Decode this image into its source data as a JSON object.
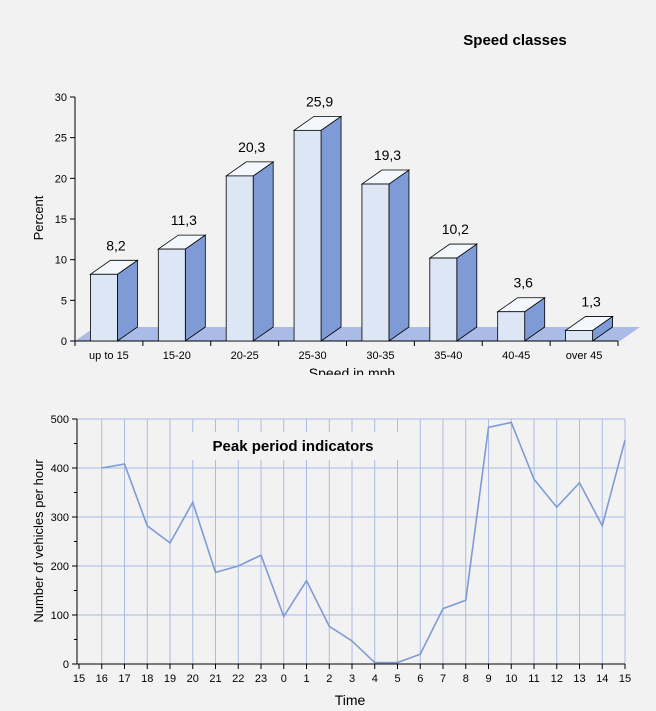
{
  "chart_data": [
    {
      "type": "bar",
      "title": "Speed classes",
      "xlabel": "Speed in mph",
      "ylabel": "Percent",
      "categories": [
        "up to 15",
        "15-20",
        "20-25",
        "25-30",
        "30-35",
        "35-40",
        "40-45",
        "over 45"
      ],
      "values": [
        8.2,
        11.3,
        20.3,
        25.9,
        19.3,
        10.2,
        3.6,
        1.3
      ],
      "value_labels": [
        "8,2",
        "11,3",
        "20,3",
        "25,9",
        "19,3",
        "10,2",
        "3,6",
        "1,3"
      ],
      "ylim": [
        0,
        30
      ],
      "yticks": [
        "0",
        "5",
        "10",
        "15",
        "20",
        "25",
        "30"
      ],
      "grid": false,
      "style": "3d",
      "colors": {
        "front": "#dce6f5",
        "side": "#7f9bd6",
        "top": "#f4f7fc",
        "floor": "#a9bbe6"
      }
    },
    {
      "type": "line",
      "title": "Peak period indicators",
      "xlabel": "Time",
      "ylabel": "Number of vehicles per hour",
      "x": [
        "15",
        "16",
        "17",
        "18",
        "19",
        "20",
        "21",
        "22",
        "23",
        "0",
        "1",
        "2",
        "3",
        "4",
        "5",
        "6",
        "7",
        "8",
        "9",
        "10",
        "11",
        "12",
        "13",
        "14",
        "15"
      ],
      "series": [
        {
          "values": [
            null,
            400,
            408,
            282,
            247,
            330,
            187,
            200,
            222,
            97,
            170,
            77,
            47,
            3,
            3,
            20,
            113,
            130,
            483,
            493,
            377,
            320,
            370,
            282,
            457
          ]
        }
      ],
      "ylim": [
        0,
        500
      ],
      "yticks": [
        "0",
        "100",
        "200",
        "300",
        "400",
        "500"
      ],
      "grid": true,
      "colors": {
        "line": "#7f9bd6",
        "grid": "#a9bbe6"
      }
    }
  ]
}
